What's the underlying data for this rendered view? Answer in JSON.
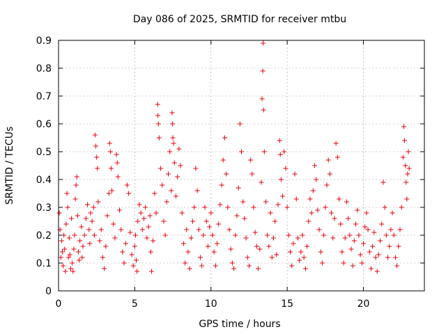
{
  "chart_data": {
    "type": "scatter",
    "title": "Day 086 of 2025, SRMTID for receiver mtbu",
    "xlabel": "GPS time / hours",
    "ylabel": "SRMTID / TECUs",
    "xlim": [
      0,
      24
    ],
    "ylim": [
      0,
      0.9
    ],
    "xticks": [
      0,
      5,
      10,
      15,
      20
    ],
    "xtick_labels": [
      "0",
      "5",
      "10",
      "15",
      "20"
    ],
    "yticks": [
      0,
      0.1,
      0.2,
      0.3,
      0.4,
      0.5,
      0.6,
      0.7,
      0.8,
      0.9
    ],
    "ytick_labels": [
      "0",
      "0.1",
      "0.2",
      "0.3",
      "0.4",
      "0.5",
      "0.6",
      "0.7",
      "0.8",
      "0.9"
    ],
    "grid": true,
    "marker": "+",
    "series": [
      {
        "name": "SRMTID",
        "color": "#e8000c",
        "points": [
          [
            0.05,
            0.28
          ],
          [
            0.1,
            0.22
          ],
          [
            0.15,
            0.12
          ],
          [
            0.2,
            0.18
          ],
          [
            0.25,
            0.14
          ],
          [
            0.3,
            0.09
          ],
          [
            0.35,
            0.2
          ],
          [
            0.4,
            0.15
          ],
          [
            0.45,
            0.07
          ],
          [
            0.5,
            0.24
          ],
          [
            0.55,
            0.35
          ],
          [
            0.6,
            0.3
          ],
          [
            0.65,
            0.12
          ],
          [
            0.7,
            0.19
          ],
          [
            0.75,
            0.13
          ],
          [
            0.8,
            0.08
          ],
          [
            0.85,
            0.26
          ],
          [
            0.9,
            0.1
          ],
          [
            0.95,
            0.07
          ],
          [
            1.0,
            0.15
          ],
          [
            1.05,
            0.2
          ],
          [
            1.1,
            0.33
          ],
          [
            1.15,
            0.38
          ],
          [
            1.2,
            0.41
          ],
          [
            1.25,
            0.27
          ],
          [
            1.3,
            0.14
          ],
          [
            1.35,
            0.11
          ],
          [
            1.4,
            0.18
          ],
          [
            1.5,
            0.23
          ],
          [
            1.55,
            0.12
          ],
          [
            1.6,
            0.16
          ],
          [
            1.7,
            0.2
          ],
          [
            1.8,
            0.26
          ],
          [
            1.9,
            0.31
          ],
          [
            2.0,
            0.22
          ],
          [
            2.05,
            0.17
          ],
          [
            2.1,
            0.28
          ],
          [
            2.2,
            0.25
          ],
          [
            2.3,
            0.3
          ],
          [
            2.35,
            0.2
          ],
          [
            2.4,
            0.56
          ],
          [
            2.45,
            0.52
          ],
          [
            2.5,
            0.48
          ],
          [
            2.55,
            0.44
          ],
          [
            2.6,
            0.32
          ],
          [
            2.7,
            0.18
          ],
          [
            2.8,
            0.22
          ],
          [
            2.9,
            0.12
          ],
          [
            3.0,
            0.08
          ],
          [
            3.1,
            0.16
          ],
          [
            3.2,
            0.27
          ],
          [
            3.3,
            0.35
          ],
          [
            3.35,
            0.53
          ],
          [
            3.4,
            0.5
          ],
          [
            3.45,
            0.44
          ],
          [
            3.5,
            0.36
          ],
          [
            3.6,
            0.24
          ],
          [
            3.7,
            0.19
          ],
          [
            3.8,
            0.49
          ],
          [
            3.85,
            0.46
          ],
          [
            3.9,
            0.41
          ],
          [
            4.0,
            0.29
          ],
          [
            4.1,
            0.22
          ],
          [
            4.2,
            0.14
          ],
          [
            4.3,
            0.1
          ],
          [
            4.4,
            0.17
          ],
          [
            4.5,
            0.38
          ],
          [
            4.6,
            0.35
          ],
          [
            4.7,
            0.21
          ],
          [
            4.8,
            0.13
          ],
          [
            4.9,
            0.09
          ],
          [
            5.0,
            0.16
          ],
          [
            5.05,
            0.2
          ],
          [
            5.1,
            0.11
          ],
          [
            5.15,
            0.07
          ],
          [
            5.2,
            0.25
          ],
          [
            5.3,
            0.31
          ],
          [
            5.4,
            0.28
          ],
          [
            5.5,
            0.22
          ],
          [
            5.6,
            0.26
          ],
          [
            5.7,
            0.3
          ],
          [
            5.8,
            0.19
          ],
          [
            5.9,
            0.23
          ],
          [
            6.0,
            0.27
          ],
          [
            6.05,
            0.14
          ],
          [
            6.1,
            0.07
          ],
          [
            6.2,
            0.18
          ],
          [
            6.3,
            0.35
          ],
          [
            6.4,
            0.28
          ],
          [
            6.5,
            0.67
          ],
          [
            6.52,
            0.63
          ],
          [
            6.55,
            0.6
          ],
          [
            6.6,
            0.55
          ],
          [
            6.7,
            0.44
          ],
          [
            6.8,
            0.38
          ],
          [
            6.9,
            0.25
          ],
          [
            7.0,
            0.2
          ],
          [
            7.1,
            0.32
          ],
          [
            7.2,
            0.42
          ],
          [
            7.3,
            0.5
          ],
          [
            7.4,
            0.36
          ],
          [
            7.45,
            0.64
          ],
          [
            7.48,
            0.6
          ],
          [
            7.5,
            0.55
          ],
          [
            7.55,
            0.53
          ],
          [
            7.6,
            0.46
          ],
          [
            7.7,
            0.34
          ],
          [
            7.8,
            0.41
          ],
          [
            7.9,
            0.51
          ],
          [
            8.0,
            0.45
          ],
          [
            8.1,
            0.28
          ],
          [
            8.2,
            0.17
          ],
          [
            8.3,
            0.1
          ],
          [
            8.4,
            0.22
          ],
          [
            8.5,
            0.14
          ],
          [
            8.6,
            0.08
          ],
          [
            8.7,
            0.19
          ],
          [
            8.8,
            0.25
          ],
          [
            8.9,
            0.3
          ],
          [
            9.0,
            0.44
          ],
          [
            9.1,
            0.36
          ],
          [
            9.2,
            0.22
          ],
          [
            9.3,
            0.12
          ],
          [
            9.4,
            0.09
          ],
          [
            9.5,
            0.2
          ],
          [
            9.6,
            0.3
          ],
          [
            9.7,
            0.25
          ],
          [
            9.8,
            0.16
          ],
          [
            9.9,
            0.23
          ],
          [
            10.0,
            0.28
          ],
          [
            10.1,
            0.2
          ],
          [
            10.2,
            0.14
          ],
          [
            10.3,
            0.09
          ],
          [
            10.4,
            0.17
          ],
          [
            10.5,
            0.24
          ],
          [
            10.6,
            0.31
          ],
          [
            10.7,
            0.38
          ],
          [
            10.8,
            0.47
          ],
          [
            10.9,
            0.55
          ],
          [
            11.0,
            0.42
          ],
          [
            11.1,
            0.3
          ],
          [
            11.2,
            0.22
          ],
          [
            11.3,
            0.15
          ],
          [
            11.4,
            0.1
          ],
          [
            11.5,
            0.08
          ],
          [
            11.6,
            0.2
          ],
          [
            11.7,
            0.27
          ],
          [
            11.8,
            0.37
          ],
          [
            11.9,
            0.6
          ],
          [
            12.0,
            0.5
          ],
          [
            12.1,
            0.32
          ],
          [
            12.2,
            0.26
          ],
          [
            12.3,
            0.19
          ],
          [
            12.4,
            0.12
          ],
          [
            12.5,
            0.09
          ],
          [
            12.6,
            0.47
          ],
          [
            12.7,
            0.42
          ],
          [
            12.8,
            0.3
          ],
          [
            12.9,
            0.21
          ],
          [
            13.0,
            0.16
          ],
          [
            13.1,
            0.08
          ],
          [
            13.2,
            0.15
          ],
          [
            13.3,
            0.39
          ],
          [
            13.35,
            0.69
          ],
          [
            13.4,
            0.79
          ],
          [
            13.42,
            0.89
          ],
          [
            13.45,
            0.65
          ],
          [
            13.5,
            0.5
          ],
          [
            13.6,
            0.32
          ],
          [
            13.7,
            0.2
          ],
          [
            13.8,
            0.16
          ],
          [
            13.9,
            0.28
          ],
          [
            14.0,
            0.12
          ],
          [
            14.1,
            0.19
          ],
          [
            14.2,
            0.25
          ],
          [
            14.3,
            0.13
          ],
          [
            14.4,
            0.31
          ],
          [
            14.5,
            0.54
          ],
          [
            14.55,
            0.49
          ],
          [
            14.6,
            0.4
          ],
          [
            14.7,
            0.34
          ],
          [
            14.8,
            0.5
          ],
          [
            14.9,
            0.44
          ],
          [
            15.0,
            0.3
          ],
          [
            15.1,
            0.2
          ],
          [
            15.2,
            0.14
          ],
          [
            15.3,
            0.09
          ],
          [
            15.4,
            0.17
          ],
          [
            15.5,
            0.42
          ],
          [
            15.6,
            0.33
          ],
          [
            15.7,
            0.19
          ],
          [
            15.8,
            0.11
          ],
          [
            15.9,
            0.14
          ],
          [
            16.0,
            0.2
          ],
          [
            16.1,
            0.12
          ],
          [
            16.2,
            0.08
          ],
          [
            16.3,
            0.16
          ],
          [
            16.4,
            0.25
          ],
          [
            16.5,
            0.33
          ],
          [
            16.6,
            0.28
          ],
          [
            16.7,
            0.36
          ],
          [
            16.8,
            0.45
          ],
          [
            16.9,
            0.4
          ],
          [
            17.0,
            0.29
          ],
          [
            17.1,
            0.22
          ],
          [
            17.2,
            0.14
          ],
          [
            17.3,
            0.1
          ],
          [
            17.4,
            0.2
          ],
          [
            17.5,
            0.3
          ],
          [
            17.6,
            0.38
          ],
          [
            17.7,
            0.47
          ],
          [
            17.8,
            0.42
          ],
          [
            17.9,
            0.28
          ],
          [
            18.0,
            0.19
          ],
          [
            18.1,
            0.26
          ],
          [
            18.2,
            0.53
          ],
          [
            18.3,
            0.48
          ],
          [
            18.4,
            0.33
          ],
          [
            18.5,
            0.24
          ],
          [
            18.6,
            0.14
          ],
          [
            18.7,
            0.1
          ],
          [
            18.8,
            0.19
          ],
          [
            18.9,
            0.32
          ],
          [
            19.0,
            0.26
          ],
          [
            19.1,
            0.2
          ],
          [
            19.2,
            0.15
          ],
          [
            19.3,
            0.09
          ],
          [
            19.4,
            0.18
          ],
          [
            19.5,
            0.24
          ],
          [
            19.6,
            0.29
          ],
          [
            19.7,
            0.2
          ],
          [
            19.8,
            0.13
          ],
          [
            19.9,
            0.1
          ],
          [
            20.0,
            0.17
          ],
          [
            20.1,
            0.23
          ],
          [
            20.2,
            0.28
          ],
          [
            20.3,
            0.22
          ],
          [
            20.4,
            0.14
          ],
          [
            20.5,
            0.08
          ],
          [
            20.6,
            0.16
          ],
          [
            20.7,
            0.21
          ],
          [
            20.8,
            0.12
          ],
          [
            20.9,
            0.07
          ],
          [
            21.0,
            0.13
          ],
          [
            21.1,
            0.18
          ],
          [
            21.2,
            0.24
          ],
          [
            21.3,
            0.39
          ],
          [
            21.4,
            0.3
          ],
          [
            21.5,
            0.2
          ],
          [
            21.6,
            0.12
          ],
          [
            21.7,
            0.16
          ],
          [
            21.8,
            0.22
          ],
          [
            21.9,
            0.28
          ],
          [
            22.0,
            0.2
          ],
          [
            22.1,
            0.12
          ],
          [
            22.2,
            0.09
          ],
          [
            22.3,
            0.16
          ],
          [
            22.4,
            0.22
          ],
          [
            22.5,
            0.3
          ],
          [
            22.6,
            0.48
          ],
          [
            22.65,
            0.59
          ],
          [
            22.7,
            0.54
          ],
          [
            22.75,
            0.45
          ],
          [
            22.8,
            0.39
          ],
          [
            22.85,
            0.33
          ],
          [
            22.9,
            0.42
          ],
          [
            22.95,
            0.5
          ],
          [
            23.0,
            0.44
          ]
        ]
      }
    ]
  }
}
